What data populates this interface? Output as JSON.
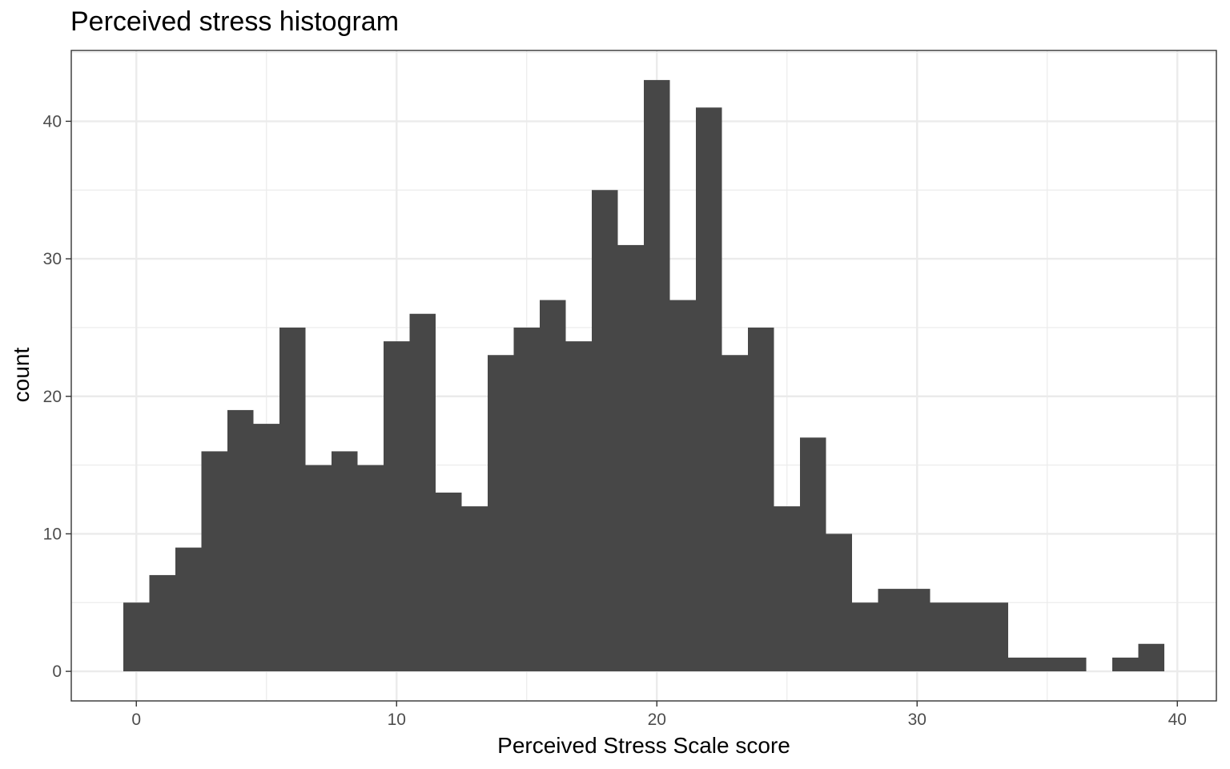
{
  "chart_data": {
    "type": "bar",
    "title": "Perceived stress histogram",
    "xlabel": "Perceived Stress Scale score",
    "ylabel": "count",
    "bin_width": 1,
    "x": [
      0,
      1,
      2,
      3,
      4,
      5,
      6,
      7,
      8,
      9,
      10,
      11,
      12,
      13,
      14,
      15,
      16,
      17,
      18,
      19,
      20,
      21,
      22,
      23,
      24,
      25,
      26,
      27,
      28,
      29,
      30,
      31,
      32,
      33,
      34,
      35,
      36,
      37,
      38,
      39
    ],
    "values": [
      5,
      7,
      9,
      16,
      19,
      18,
      25,
      15,
      16,
      15,
      24,
      26,
      13,
      12,
      23,
      25,
      27,
      24,
      35,
      31,
      43,
      27,
      41,
      23,
      25,
      12,
      17,
      10,
      5,
      6,
      6,
      5,
      5,
      5,
      1,
      1,
      1,
      0,
      1,
      2
    ],
    "xlim": [
      -2.5,
      41.5
    ],
    "ylim": [
      -2.15,
      45.15
    ],
    "x_ticks": [
      0,
      10,
      20,
      30,
      40
    ],
    "x_tick_labels": [
      "0",
      "10",
      "20",
      "30",
      "40"
    ],
    "y_ticks": [
      0,
      10,
      20,
      30,
      40
    ],
    "y_tick_labels": [
      "0",
      "10",
      "20",
      "30",
      "40"
    ],
    "grid": true,
    "bar_color": "#474747",
    "grid_color": "#ebebeb",
    "panel_border_color": "#333333",
    "tick_color": "#333333"
  }
}
